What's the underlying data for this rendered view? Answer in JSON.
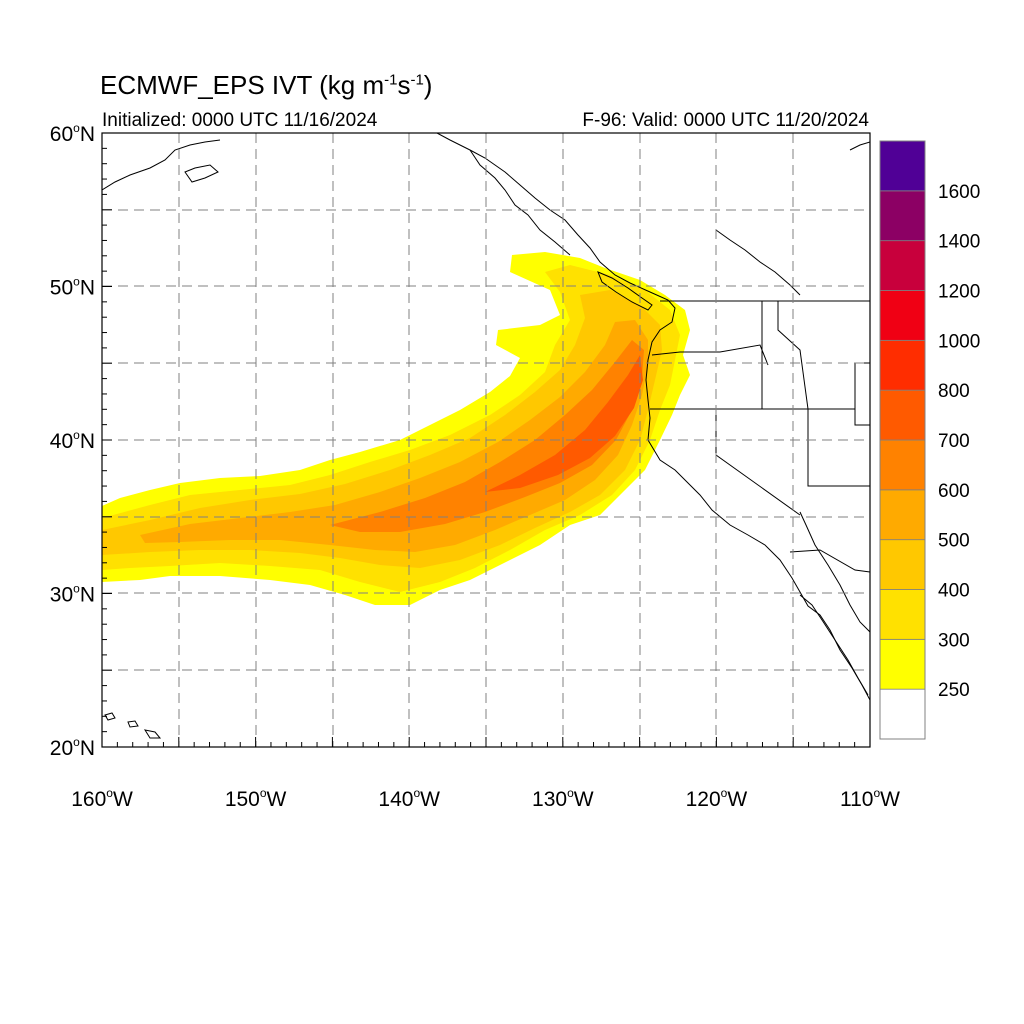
{
  "header": {
    "title_main": "ECMWF_EPS IVT (kg m",
    "title_exp1": "-1",
    "title_mid": "s",
    "title_exp2": "-1",
    "title_end": ")",
    "init_label": "Initialized: 0000 UTC 11/16/2024",
    "valid_label": "F-96: Valid: 0000 UTC 11/20/2024"
  },
  "map": {
    "lon_range": [
      -160,
      -110
    ],
    "lat_range": [
      20,
      60
    ],
    "lat_ticks": [
      {
        "value": 60,
        "label": "60"
      },
      {
        "value": 50,
        "label": "50"
      },
      {
        "value": 40,
        "label": "40"
      },
      {
        "value": 30,
        "label": "30"
      },
      {
        "value": 20,
        "label": "20"
      }
    ],
    "lat_suffix": "N",
    "lon_ticks": [
      {
        "value": -160,
        "label": "160"
      },
      {
        "value": -150,
        "label": "150"
      },
      {
        "value": -140,
        "label": "140"
      },
      {
        "value": -130,
        "label": "130"
      },
      {
        "value": -120,
        "label": "120"
      },
      {
        "value": -110,
        "label": "110"
      }
    ],
    "lon_suffix": "W",
    "degree_symbol": "o",
    "grid": "dashed every 5 degrees"
  },
  "colorbar": {
    "levels": [
      {
        "value": "",
        "color": "#ffffff"
      },
      {
        "value": "250",
        "color": "#ffff00"
      },
      {
        "value": "300",
        "color": "#ffe100"
      },
      {
        "value": "400",
        "color": "#ffc800"
      },
      {
        "value": "500",
        "color": "#ffaa00"
      },
      {
        "value": "600",
        "color": "#ff8200"
      },
      {
        "value": "700",
        "color": "#ff5a00"
      },
      {
        "value": "800",
        "color": "#ff2d00"
      },
      {
        "value": "1000",
        "color": "#f00014"
      },
      {
        "value": "1200",
        "color": "#c8003c"
      },
      {
        "value": "1400",
        "color": "#8c0064"
      },
      {
        "value": "1600",
        "color": "#500096"
      }
    ]
  }
}
